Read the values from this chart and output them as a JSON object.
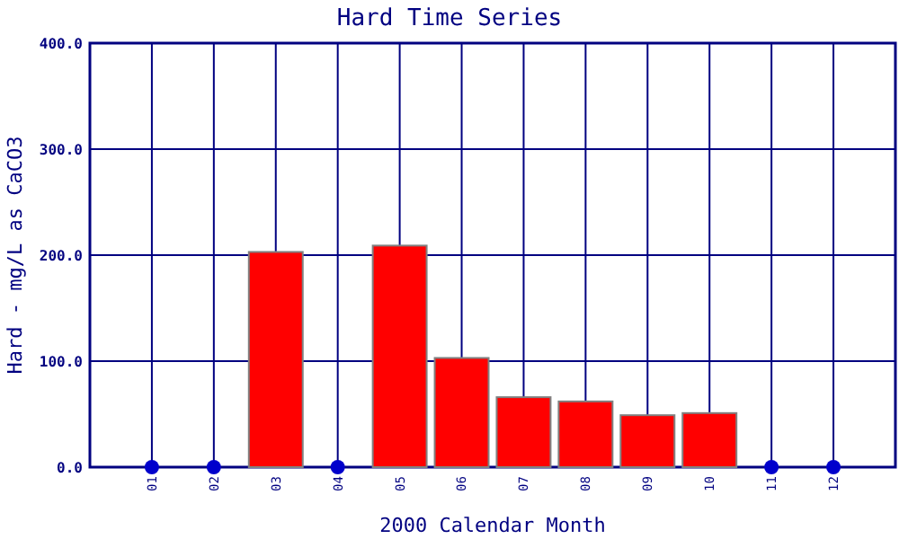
{
  "chart_data": {
    "type": "bar",
    "title": "Hard Time Series",
    "xlabel": "2000 Calendar Month",
    "ylabel": "Hard - mg/L as CaCO3",
    "categories": [
      "01",
      "02",
      "03",
      "04",
      "05",
      "06",
      "07",
      "08",
      "09",
      "10",
      "11",
      "12"
    ],
    "series": [
      {
        "color": "#ff0000",
        "values": [
          null,
          null,
          203,
          null,
          209,
          103,
          66,
          62,
          49,
          51,
          null,
          null
        ]
      },
      {
        "type": "scatter",
        "color": "#0000cc",
        "x": [
          "01",
          "02",
          "04",
          "11",
          "12"
        ],
        "values": [
          0,
          0,
          0,
          0,
          0
        ]
      }
    ],
    "ylim": [
      0,
      400
    ],
    "yticks": [
      {
        "value": 0,
        "label": "0.0"
      },
      {
        "value": 100,
        "label": "100.0"
      },
      {
        "value": 200,
        "label": "200.0"
      },
      {
        "value": 300,
        "label": "300.0"
      },
      {
        "value": 400,
        "label": "400.0"
      }
    ],
    "grid": true,
    "marker": "circle"
  }
}
